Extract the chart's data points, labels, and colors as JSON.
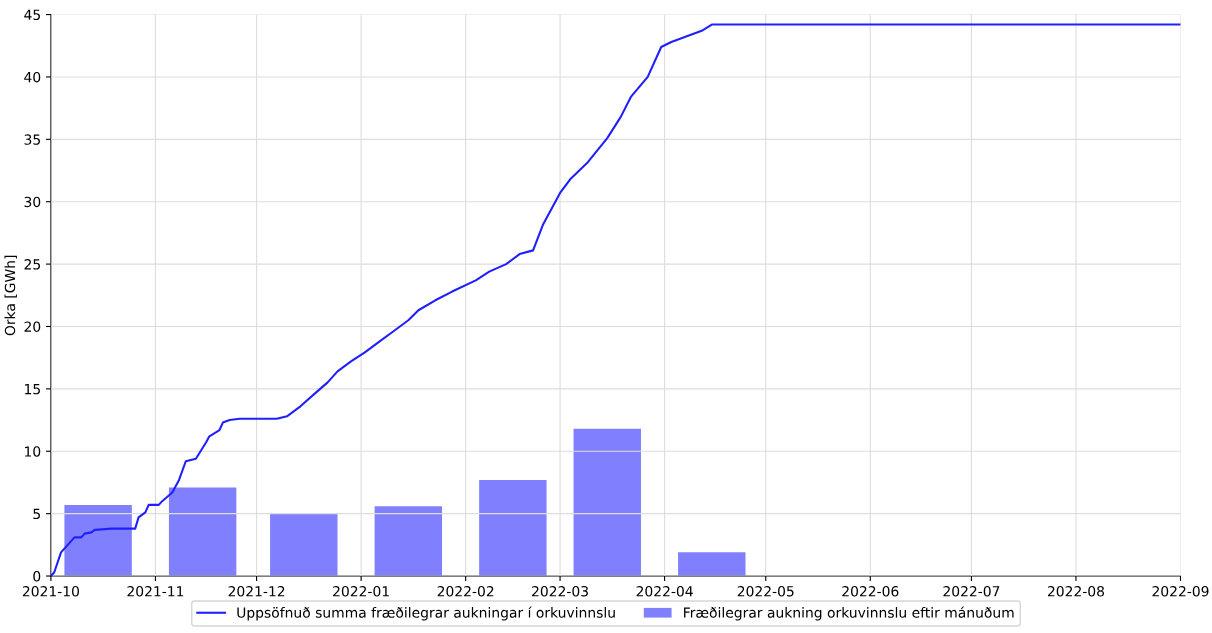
{
  "chart_data": {
    "type": "line",
    "ylabel": "Orka [GWh]",
    "xlim": [
      "2021-10-01",
      "2022-09-01"
    ],
    "xticks": [
      {
        "value": "2021-10-01",
        "label": "2021-10"
      },
      {
        "value": "2021-11-01",
        "label": "2021-11"
      },
      {
        "value": "2021-12-01",
        "label": "2021-12"
      },
      {
        "value": "2022-01-01",
        "label": "2022-01"
      },
      {
        "value": "2022-02-01",
        "label": "2022-02"
      },
      {
        "value": "2022-03-01",
        "label": "2022-03"
      },
      {
        "value": "2022-04-01",
        "label": "2022-04"
      },
      {
        "value": "2022-05-01",
        "label": "2022-05"
      },
      {
        "value": "2022-06-01",
        "label": "2022-06"
      },
      {
        "value": "2022-07-01",
        "label": "2022-07"
      },
      {
        "value": "2022-08-01",
        "label": "2022-08"
      },
      {
        "value": "2022-09-01",
        "label": "2022-09"
      }
    ],
    "ylim": [
      0,
      45
    ],
    "yticks": [
      0,
      5,
      10,
      15,
      20,
      25,
      30,
      35,
      40,
      45
    ],
    "grid": true,
    "legend": "bottom",
    "series": [
      {
        "name": "Uppsöfnuð summa fræðilegrar aukningar í orkuvinnslu",
        "color": "#2020ff",
        "x": [
          "2021-10-01",
          "2021-10-02",
          "2021-10-04",
          "2021-10-06",
          "2021-10-08",
          "2021-10-10",
          "2021-10-11",
          "2021-10-13",
          "2021-10-14",
          "2021-10-19",
          "2021-10-26",
          "2021-10-27",
          "2021-10-29",
          "2021-10-30",
          "2021-11-02",
          "2021-11-03",
          "2021-11-06",
          "2021-11-08",
          "2021-11-10",
          "2021-11-13",
          "2021-11-16",
          "2021-11-17",
          "2021-11-20",
          "2021-11-21",
          "2021-11-23",
          "2021-11-26",
          "2021-12-07",
          "2021-12-10",
          "2021-12-14",
          "2021-12-19",
          "2021-12-22",
          "2021-12-25",
          "2021-12-29",
          "2022-01-02",
          "2022-01-07",
          "2022-01-10",
          "2022-01-15",
          "2022-01-18",
          "2022-01-23",
          "2022-01-28",
          "2022-02-04",
          "2022-02-08",
          "2022-02-13",
          "2022-02-17",
          "2022-02-21",
          "2022-02-24",
          "2022-03-01",
          "2022-03-04",
          "2022-03-09",
          "2022-03-15",
          "2022-03-19",
          "2022-03-22",
          "2022-03-27",
          "2022-03-31",
          "2022-04-03",
          "2022-04-09",
          "2022-04-12",
          "2022-04-15",
          "2022-09-01"
        ],
        "values": [
          0,
          0.3,
          1.9,
          2.5,
          3.1,
          3.1,
          3.4,
          3.5,
          3.7,
          3.8,
          3.8,
          4.7,
          5.1,
          5.7,
          5.7,
          6.0,
          6.7,
          7.7,
          9.2,
          9.4,
          10.7,
          11.2,
          11.7,
          12.3,
          12.5,
          12.6,
          12.6,
          12.8,
          13.6,
          14.8,
          15.5,
          16.4,
          17.2,
          17.9,
          18.9,
          19.5,
          20.5,
          21.3,
          22.1,
          22.8,
          23.7,
          24.4,
          25.0,
          25.8,
          26.1,
          28.2,
          30.7,
          31.8,
          33.1,
          35.1,
          36.8,
          38.4,
          40.0,
          42.4,
          42.8,
          43.4,
          43.7,
          44.2,
          44.2
        ]
      },
      {
        "name": "Fræðilegrar aukning orkuvinnslu eftir mánuðum",
        "type": "bar",
        "color": "#8080ff",
        "x": [
          "2021-10-15",
          "2021-11-15",
          "2021-12-15",
          "2022-01-15",
          "2022-02-15",
          "2022-03-15",
          "2022-04-15"
        ],
        "values": [
          5.7,
          7.1,
          5.0,
          5.6,
          7.7,
          11.8,
          1.9
        ]
      }
    ]
  }
}
